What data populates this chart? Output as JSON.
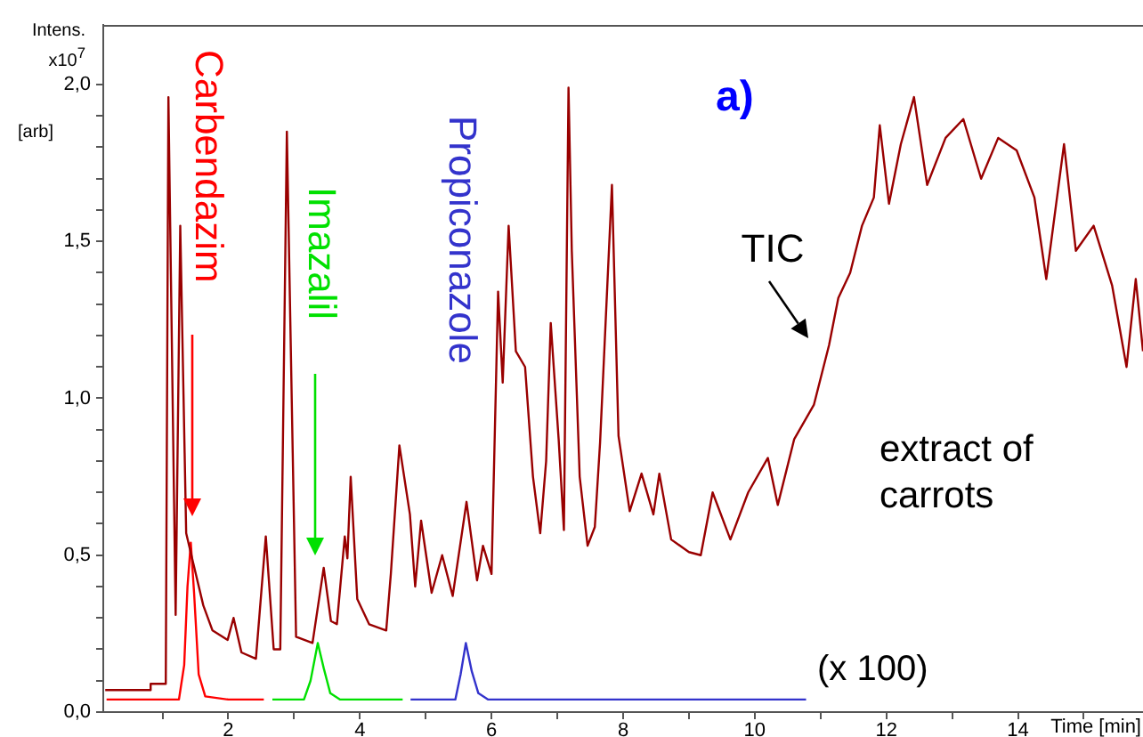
{
  "chart_data": {
    "type": "line",
    "ylabel": "Intens. x10$^{7}$ [arb]",
    "xlabel": "Time [min]",
    "annotations": [
      "a)",
      "extract of carrots",
      "(x 100)"
    ],
    "xlim": [
      0.1,
      15.9
    ],
    "ylim": [
      0,
      2.19
    ],
    "xticks": [
      {
        "value": 1,
        "label": null
      },
      2,
      {
        "value": 3,
        "label": null
      },
      4,
      {
        "value": 5,
        "label": null
      },
      6,
      {
        "value": 7,
        "label": null
      },
      8,
      {
        "value": 9,
        "label": null
      },
      10,
      {
        "value": 11,
        "label": null
      },
      12,
      {
        "value": 13,
        "label": null
      },
      14,
      {
        "value": 15,
        "label": null
      }
    ],
    "yticks": [
      {
        "value": 0,
        "label": "0,0"
      },
      {
        "value": 0.1,
        "label": null
      },
      {
        "value": 0.2,
        "label": null
      },
      {
        "value": 0.3,
        "label": null
      },
      {
        "value": 0.4,
        "label": null
      },
      {
        "value": 0.5,
        "label": "0,5"
      },
      {
        "value": 0.6,
        "label": null
      },
      {
        "value": 0.7,
        "label": null
      },
      {
        "value": 0.8,
        "label": null
      },
      {
        "value": 0.9,
        "label": null
      },
      {
        "value": 1,
        "label": "1,0"
      },
      {
        "value": 1.1,
        "label": null
      },
      {
        "value": 1.2,
        "label": null
      },
      {
        "value": 1.3,
        "label": null
      },
      {
        "value": 1.4,
        "label": null
      },
      {
        "value": 1.5,
        "label": "1,5"
      },
      {
        "value": 1.6,
        "label": null
      },
      {
        "value": 1.7,
        "label": null
      },
      {
        "value": 1.8,
        "label": null
      },
      {
        "value": 1.9,
        "label": null
      },
      {
        "value": 2,
        "label": "2,0"
      }
    ],
    "grid": false,
    "legend": false,
    "marker": "none",
    "line_style": "solid",
    "series": [
      {
        "name": "TIC",
        "color": "#990000",
        "x": [
          0.13,
          0.81,
          0.82,
          1.05,
          1.09,
          1.2,
          1.27,
          1.36,
          1.45,
          1.62,
          1.76,
          1.99,
          2.08,
          2.2,
          2.42,
          2.57,
          2.69,
          2.79,
          2.89,
          3.03,
          3.28,
          3.45,
          3.56,
          3.65,
          3.77,
          3.81,
          3.86,
          3.96,
          4.14,
          4.4,
          4.47,
          4.6,
          4.76,
          4.84,
          4.93,
          5.09,
          5.25,
          5.41,
          5.62,
          5.78,
          5.87,
          6.0,
          6.1,
          6.17,
          6.26,
          6.37,
          6.51,
          6.63,
          6.74,
          6.83,
          6.9,
          7.02,
          7.1,
          7.17,
          7.22,
          7.34,
          7.46,
          7.57,
          7.65,
          7.83,
          7.93,
          8.1,
          8.28,
          8.46,
          8.55,
          8.73,
          9.0,
          9.18,
          9.36,
          9.63,
          9.9,
          10.2,
          10.35,
          10.6,
          10.9,
          11.13,
          11.27,
          11.45,
          11.63,
          11.81,
          11.9,
          12.04,
          12.22,
          12.42,
          12.62,
          12.9,
          13.17,
          13.44,
          13.7,
          13.98,
          14.25,
          14.43,
          14.7,
          14.88,
          15.15,
          15.43,
          15.65,
          15.79,
          15.9
        ],
        "values": [
          0.07,
          0.07,
          0.09,
          0.09,
          1.96,
          0.31,
          1.55,
          0.57,
          0.49,
          0.34,
          0.26,
          0.23,
          0.3,
          0.19,
          0.17,
          0.56,
          0.2,
          0.2,
          1.85,
          0.24,
          0.22,
          0.46,
          0.29,
          0.28,
          0.56,
          0.49,
          0.75,
          0.36,
          0.28,
          0.26,
          0.44,
          0.85,
          0.63,
          0.4,
          0.61,
          0.38,
          0.5,
          0.37,
          0.67,
          0.42,
          0.53,
          0.44,
          1.34,
          1.05,
          1.55,
          1.15,
          1.1,
          0.75,
          0.57,
          0.8,
          1.24,
          0.87,
          0.58,
          1.99,
          1.47,
          0.75,
          0.53,
          0.59,
          0.86,
          1.68,
          0.88,
          0.64,
          0.76,
          0.63,
          0.76,
          0.55,
          0.51,
          0.5,
          0.7,
          0.55,
          0.7,
          0.81,
          0.66,
          0.87,
          0.98,
          1.17,
          1.32,
          1.4,
          1.55,
          1.64,
          1.87,
          1.62,
          1.81,
          1.96,
          1.68,
          1.83,
          1.89,
          1.7,
          1.83,
          1.79,
          1.64,
          1.38,
          1.81,
          1.47,
          1.55,
          1.36,
          1.1,
          1.38,
          1.15
        ]
      },
      {
        "name": "Carbendazim",
        "color": "#ff0000",
        "x": [
          0.15,
          1.25,
          1.33,
          1.38,
          1.43,
          1.48,
          1.55,
          1.65,
          2.0,
          2.54
        ],
        "values": [
          0.04,
          0.04,
          0.15,
          0.4,
          0.54,
          0.38,
          0.12,
          0.05,
          0.04,
          0.04
        ]
      },
      {
        "name": "Imazalil",
        "color": "#00e000",
        "x": [
          2.67,
          3.15,
          3.25,
          3.36,
          3.45,
          3.55,
          3.7,
          4.65
        ],
        "values": [
          0.04,
          0.04,
          0.1,
          0.22,
          0.14,
          0.06,
          0.04,
          0.04
        ]
      },
      {
        "name": "Propiconazole",
        "color": "#3333cc",
        "x": [
          4.77,
          5.45,
          5.53,
          5.61,
          5.7,
          5.8,
          5.95,
          10.78
        ],
        "values": [
          0.04,
          0.04,
          0.12,
          0.22,
          0.13,
          0.06,
          0.04,
          0.04
        ]
      }
    ]
  }
}
